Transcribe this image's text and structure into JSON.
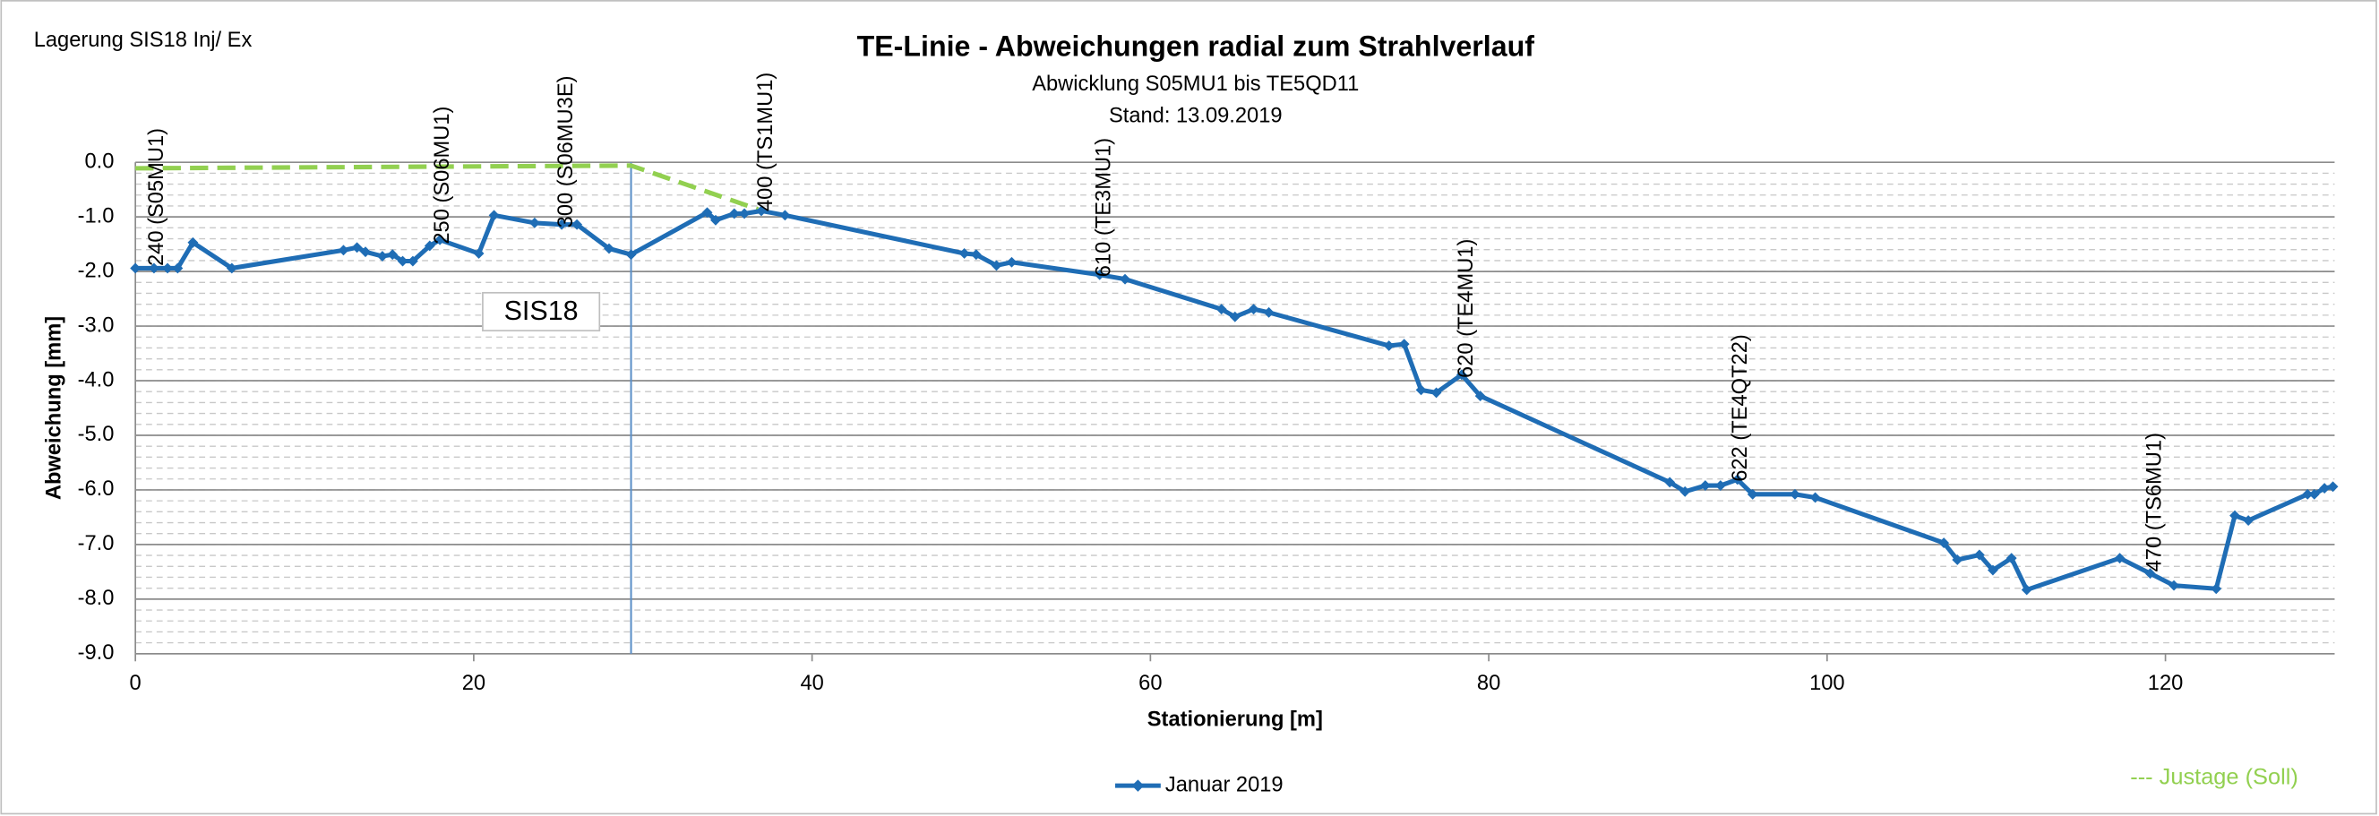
{
  "chart_data": {
    "type": "line",
    "corner_note": "Lagerung SIS18 Inj/ Ex",
    "title": "TE-Linie - Abweichungen radial zum Strahlverlauf",
    "subtitle": [
      "Abwicklung  S05MU1 bis TE5QD11",
      "Stand: 13.09.2019"
    ],
    "xlabel": "Stationierung [m]",
    "ylabel": "Abweichung [mm]",
    "xlim": [
      0,
      130
    ],
    "ylim": [
      -9,
      0
    ],
    "xticks": [
      0,
      20,
      40,
      60,
      80,
      100,
      120
    ],
    "yticks": [
      {
        "value": 0,
        "label": "0.0"
      },
      {
        "value": -1,
        "label": "-1.0"
      },
      {
        "value": -2,
        "label": "-2.0"
      },
      {
        "value": -3,
        "label": "-3.0"
      },
      {
        "value": -4,
        "label": "-4.0"
      },
      {
        "value": -5,
        "label": "-5.0"
      },
      {
        "value": -6,
        "label": "-6.0"
      },
      {
        "value": -7,
        "label": "-7.0"
      },
      {
        "value": -8,
        "label": "-8.0"
      },
      {
        "value": -9,
        "label": "-9.0"
      }
    ],
    "grid": true,
    "yminor_step": 0.2,
    "series": [
      {
        "name": "Januar 2019",
        "color": "#1f6db5",
        "markers": true,
        "dashed": false,
        "x": [
          0,
          1.1,
          1.9,
          2.5,
          3.4,
          5.7,
          12.3,
          13.1,
          13.6,
          14.6,
          15.2,
          15.8,
          16.4,
          17.4,
          18.0,
          20.3,
          21.2,
          23.6,
          25.2,
          26.1,
          28.0,
          29.3,
          33.8,
          34.3,
          35.4,
          36.0,
          37.0,
          38.4,
          49.0,
          49.7,
          50.9,
          51.8,
          57.0,
          58.5,
          64.2,
          65.0,
          66.1,
          67.0,
          74.1,
          75.0,
          76.0,
          76.9,
          78.4,
          79.5,
          90.7,
          91.6,
          92.8,
          93.7,
          94.7,
          95.6,
          98.1,
          99.3,
          106.9,
          107.7,
          109.0,
          109.8,
          110.9,
          111.8,
          117.3,
          119.1,
          120.5,
          123.0,
          124.1,
          124.9,
          128.4,
          128.8,
          129.4,
          129.9
        ],
        "values": [
          -1.94,
          -1.94,
          -1.94,
          -1.94,
          -1.47,
          -1.94,
          -1.61,
          -1.56,
          -1.64,
          -1.72,
          -1.69,
          -1.81,
          -1.81,
          -1.53,
          -1.42,
          -1.67,
          -0.97,
          -1.11,
          -1.14,
          -1.14,
          -1.58,
          -1.69,
          -0.92,
          -1.06,
          -0.94,
          -0.94,
          -0.89,
          -0.97,
          -1.67,
          -1.69,
          -1.89,
          -1.83,
          -2.06,
          -2.14,
          -2.69,
          -2.83,
          -2.69,
          -2.75,
          -3.36,
          -3.33,
          -4.17,
          -4.22,
          -3.89,
          -4.28,
          -5.86,
          -6.03,
          -5.92,
          -5.92,
          -5.81,
          -6.08,
          -6.08,
          -6.14,
          -6.97,
          -7.28,
          -7.19,
          -7.47,
          -7.25,
          -7.83,
          -7.25,
          -7.53,
          -7.75,
          -7.81,
          -6.47,
          -6.56,
          -6.08,
          -6.08,
          -5.97,
          -5.94
        ]
      },
      {
        "name": "--- Justage (Soll)",
        "color": "#92d050",
        "markers": false,
        "dashed": true,
        "x": [
          0,
          29.3,
          36.8
        ],
        "values": [
          -0.11,
          -0.06,
          -0.86
        ]
      }
    ],
    "annotations": [
      {
        "text": "240 (S05MU1)",
        "x": 1.3,
        "y": -1.9
      },
      {
        "text": "250 (S06MU1)",
        "x": 18.2,
        "y": -1.5
      },
      {
        "text": "300 (S06MU3E)",
        "x": 25.5,
        "y": -1.2
      },
      {
        "text": "400 (TS1MU1)",
        "x": 37.3,
        "y": -0.9
      },
      {
        "text": "610 (TE3MU1)",
        "x": 57.3,
        "y": -2.1
      },
      {
        "text": "620 (TE4MU1)",
        "x": 78.7,
        "y": -3.95
      },
      {
        "text": "622 (TE4QT22)",
        "x": 94.9,
        "y": -5.85
      },
      {
        "text": "470 (TS6MU1)",
        "x": 119.4,
        "y": -7.5
      }
    ],
    "vline_x": 29.3,
    "box_label": "SIS18"
  }
}
